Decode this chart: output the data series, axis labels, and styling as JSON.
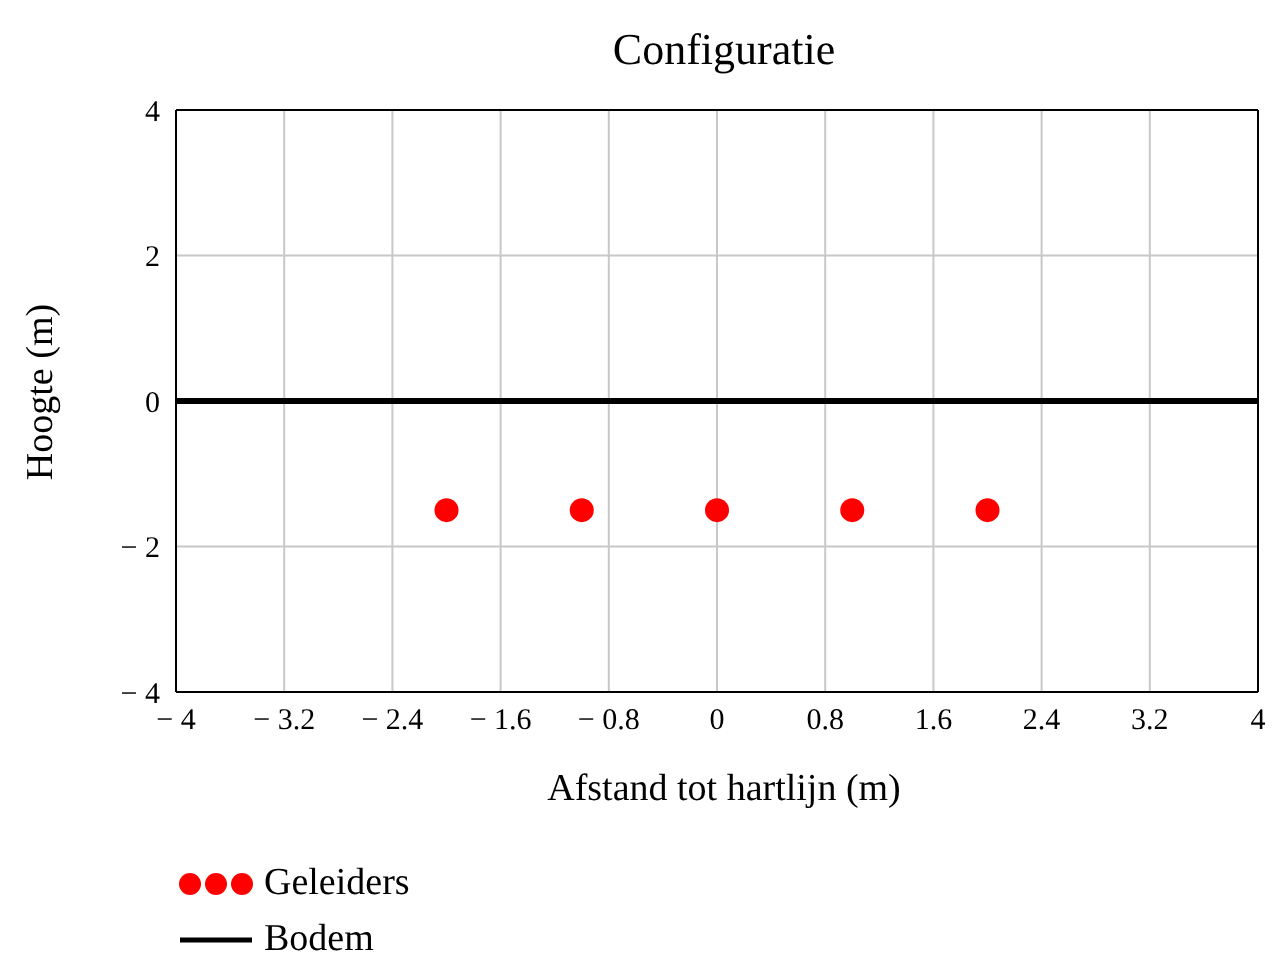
{
  "chart_data": {
    "type": "scatter",
    "title": "Configuratie",
    "xlabel": "Afstand tot hartlijn (m)",
    "ylabel": "Hoogte (m)",
    "x": [
      -2,
      -1,
      0,
      1,
      2
    ],
    "series": [
      {
        "name": "Geleiders",
        "color": "#ff0000",
        "marker": "circle",
        "values": [
          -1.5,
          -1.5,
          -1.5,
          -1.5,
          -1.5
        ]
      },
      {
        "name": "Bodem",
        "type": "line",
        "color": "#000000",
        "line_style": "solid",
        "x": [
          -4,
          4
        ],
        "values": [
          0,
          0
        ]
      }
    ],
    "xlim": [
      -4,
      4
    ],
    "xticks": [
      {
        "value": -4,
        "label": "− 4"
      },
      {
        "value": -3.2,
        "label": "− 3.2"
      },
      {
        "value": -2.4,
        "label": "− 2.4"
      },
      {
        "value": -1.6,
        "label": "− 1.6"
      },
      {
        "value": -0.8,
        "label": "− 0.8"
      },
      0,
      0.8,
      1.6,
      2.4,
      3.2,
      4
    ],
    "ylim": [
      -4,
      4
    ],
    "yticks": [
      {
        "value": -4,
        "label": "− 4"
      },
      {
        "value": -2,
        "label": "− 2"
      },
      0,
      2,
      4
    ],
    "grid": true,
    "legend": "bottom left"
  }
}
